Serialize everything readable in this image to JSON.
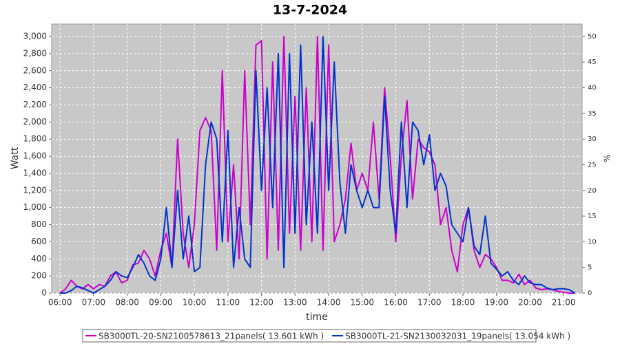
{
  "chart_data": {
    "type": "line",
    "title": "13-7-2024",
    "xlabel": "time",
    "ylabel": "Watt",
    "y2label": "%",
    "x": [
      360,
      370,
      380,
      390,
      400,
      410,
      420,
      430,
      440,
      450,
      460,
      470,
      480,
      490,
      500,
      510,
      520,
      530,
      540,
      550,
      560,
      570,
      580,
      590,
      600,
      610,
      620,
      630,
      640,
      650,
      660,
      670,
      680,
      690,
      700,
      710,
      720,
      730,
      740,
      750,
      760,
      770,
      780,
      790,
      800,
      810,
      820,
      830,
      840,
      850,
      860,
      870,
      880,
      890,
      900,
      910,
      920,
      930,
      940,
      950,
      960,
      970,
      980,
      990,
      1000,
      1010,
      1020,
      1030,
      1040,
      1050,
      1060,
      1070,
      1080,
      1090,
      1100,
      1110,
      1120,
      1130,
      1140,
      1150,
      1160,
      1170,
      1180,
      1190,
      1200,
      1210,
      1220,
      1230,
      1240,
      1250,
      1260,
      1270,
      1280
    ],
    "series": [
      {
        "name": "SB3000TL-20-SN2100578613_21panels( 13.601 kWh )",
        "color": "#cc00cc",
        "values": [
          0,
          50,
          150,
          80,
          50,
          100,
          50,
          100,
          80,
          200,
          250,
          120,
          150,
          330,
          350,
          500,
          400,
          200,
          500,
          700,
          300,
          1800,
          700,
          300,
          800,
          1900,
          2050,
          1900,
          500,
          2600,
          600,
          1500,
          400,
          2600,
          800,
          2900,
          2950,
          400,
          2700,
          500,
          3000,
          700,
          2300,
          500,
          2400,
          600,
          3000,
          500,
          2900,
          600,
          800,
          1100,
          1750,
          1200,
          1400,
          1200,
          2000,
          1100,
          2400,
          1600,
          600,
          1600,
          2250,
          1100,
          1800,
          1700,
          1650,
          1500,
          800,
          1000,
          500,
          250,
          800,
          1000,
          500,
          300,
          450,
          400,
          300,
          150,
          150,
          120,
          220,
          100,
          150,
          60,
          40,
          50,
          40,
          20,
          10,
          0,
          0
        ]
      },
      {
        "name": "SB3000TL-21-SN2130032031_19panels( 13.054 kWh )",
        "color": "#0033cc",
        "values": [
          0,
          0,
          30,
          80,
          60,
          30,
          0,
          40,
          80,
          150,
          250,
          200,
          180,
          300,
          450,
          350,
          200,
          150,
          400,
          1000,
          300,
          1200,
          400,
          900,
          250,
          300,
          1500,
          2000,
          1800,
          600,
          1900,
          300,
          1000,
          400,
          300,
          2600,
          1200,
          2400,
          1000,
          2800,
          300,
          2800,
          700,
          2900,
          800,
          2000,
          700,
          3000,
          1200,
          2700,
          1300,
          700,
          1500,
          1200,
          1000,
          1200,
          1000,
          1000,
          2300,
          1200,
          700,
          2000,
          1000,
          2000,
          1900,
          1500,
          1850,
          1200,
          1400,
          1250,
          800,
          700,
          600,
          1000,
          550,
          450,
          900,
          350,
          280,
          200,
          250,
          150,
          100,
          200,
          120,
          100,
          100,
          60,
          40,
          50,
          50,
          40,
          0
        ]
      }
    ],
    "xlim": [
      345,
      1293
    ],
    "xticks": [
      {
        "value": 360,
        "label": "06:00"
      },
      {
        "value": 420,
        "label": "07:00"
      },
      {
        "value": 480,
        "label": "08:00"
      },
      {
        "value": 540,
        "label": "09:00"
      },
      {
        "value": 600,
        "label": "10:00"
      },
      {
        "value": 660,
        "label": "11:00"
      },
      {
        "value": 720,
        "label": "12:00"
      },
      {
        "value": 780,
        "label": "13:00"
      },
      {
        "value": 840,
        "label": "14:00"
      },
      {
        "value": 900,
        "label": "15:00"
      },
      {
        "value": 960,
        "label": "16:00"
      },
      {
        "value": 1020,
        "label": "17:00"
      },
      {
        "value": 1080,
        "label": "18:00"
      },
      {
        "value": 1140,
        "label": "19:00"
      },
      {
        "value": 1200,
        "label": "20:00"
      },
      {
        "value": 1260,
        "label": "21:00"
      }
    ],
    "ylim": [
      0,
      3145
    ],
    "yticks": [
      0,
      200,
      400,
      600,
      800,
      {
        "value": 1000,
        "label": "1,000"
      },
      {
        "value": 1200,
        "label": "1,200"
      },
      {
        "value": 1400,
        "label": "1,400"
      },
      {
        "value": 1600,
        "label": "1,600"
      },
      {
        "value": 1800,
        "label": "1,800"
      },
      {
        "value": 2000,
        "label": "2,000"
      },
      {
        "value": 2200,
        "label": "2,200"
      },
      {
        "value": 2400,
        "label": "2,400"
      },
      {
        "value": 2600,
        "label": "2,600"
      },
      {
        "value": 2800,
        "label": "2,800"
      },
      {
        "value": 3000,
        "label": "3,000"
      }
    ],
    "y2lim": [
      0,
      52.4
    ],
    "y2ticks": [
      0,
      5,
      10,
      15,
      20,
      25,
      30,
      35,
      40,
      45,
      50
    ],
    "grid": true,
    "legend": "bottom"
  }
}
